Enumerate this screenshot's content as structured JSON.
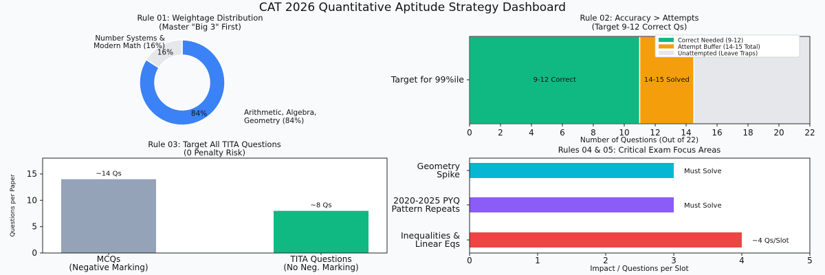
{
  "main_title": "CAT 2026 Quantitative Aptitude Strategy Dashboard",
  "chart_data": [
    {
      "id": "rule01",
      "type": "pie",
      "donut": true,
      "title": "Rule 01: Weightage Distribution",
      "subtitle": "(Master \"Big 3\" First)",
      "slices": [
        {
          "label_lines": [
            "Arithmetic, Algebra,",
            "Geometry (84%)"
          ],
          "value": 84,
          "pct_label": "84%",
          "color": "#3b82f6"
        },
        {
          "label_lines": [
            "Number Systems &",
            "Modern Math (16%)"
          ],
          "value": 16,
          "pct_label": "16%",
          "color": "#e5e7eb"
        }
      ]
    },
    {
      "id": "rule02",
      "type": "bar",
      "orientation": "horizontal",
      "stacked": true,
      "title": "Rule 02: Accuracy > Attempts",
      "subtitle": "(Target 9-12 Correct Qs)",
      "categories": [
        "Target for 99%ile"
      ],
      "xlabel": "Number of Questions (Out of 22)",
      "xlim": [
        0,
        22
      ],
      "xticks": [
        0,
        2,
        4,
        6,
        8,
        10,
        12,
        14,
        16,
        18,
        20,
        22
      ],
      "legend_position": "top-right",
      "series": [
        {
          "name": "Correct Needed (9-12)",
          "values": [
            11
          ],
          "bar_label": "9-12 Correct",
          "color": "#10b981"
        },
        {
          "name": "Attempt Buffer (14-15 Total)",
          "values": [
            3.5
          ],
          "bar_label": "14-15 Solved",
          "color": "#f59e0b"
        },
        {
          "name": "Unattempted (Leave Traps)",
          "values": [
            7.5
          ],
          "bar_label": "",
          "color": "#e5e7eb"
        }
      ]
    },
    {
      "id": "rule03",
      "type": "bar",
      "orientation": "vertical",
      "title": "Rule 03: Target All TITA Questions",
      "subtitle": "(0 Penalty Risk)",
      "ylabel": "Questions per Paper",
      "ylim": [
        0,
        18
      ],
      "yticks": [
        0,
        5,
        10,
        15
      ],
      "categories": [
        [
          "MCQs",
          "(Negative Marking)"
        ],
        [
          "TITA Questions",
          "(No Neg. Marking)"
        ]
      ],
      "values": [
        14,
        8
      ],
      "value_labels": [
        "~14 Qs",
        "~8 Qs"
      ],
      "colors": [
        "#94a3b8",
        "#10b981"
      ]
    },
    {
      "id": "rule0405",
      "type": "bar",
      "orientation": "horizontal",
      "title": "Rules 04 & 05: Critical Exam Focus Areas",
      "xlabel": "Impact / Questions per Slot",
      "xlim": [
        0,
        5
      ],
      "xticks": [
        0,
        1,
        2,
        3,
        4,
        5
      ],
      "categories": [
        [
          "Geometry",
          "Spike"
        ],
        [
          "2020-2025 PYQ",
          "Pattern Repeats"
        ],
        [
          "Inequalities &",
          "Linear Eqs"
        ]
      ],
      "values": [
        3,
        3,
        4
      ],
      "value_labels": [
        "Must Solve",
        "Must Solve",
        "~4 Qs/Slot"
      ],
      "colors": [
        "#06b6d4",
        "#8b5cf6",
        "#ef4444"
      ]
    }
  ]
}
